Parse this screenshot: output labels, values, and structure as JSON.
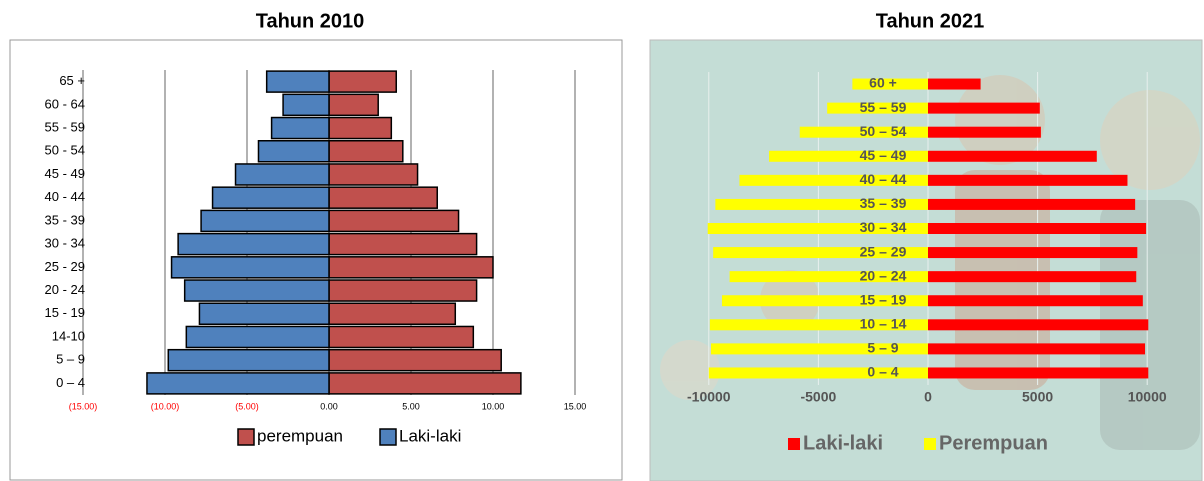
{
  "chart_data": [
    {
      "type": "bar",
      "orientation": "horizontal",
      "title": "Tahun 2010",
      "categories": [
        "0 – 4",
        "5 – 9",
        "14-10",
        "15 - 19",
        "20 - 24",
        "25 - 29",
        "30 - 34",
        "35 - 39",
        "40 - 44",
        "45 - 49",
        "50 - 54",
        "55 - 59",
        "60 - 64",
        "65 +"
      ],
      "series": [
        {
          "name": "perempuan",
          "color": "#c0504d",
          "values": [
            11.7,
            10.5,
            8.8,
            7.7,
            9.0,
            10.0,
            9.0,
            7.9,
            6.6,
            5.4,
            4.5,
            3.8,
            3.0,
            4.1
          ]
        },
        {
          "name": "Laki-laki",
          "color": "#4f81bd",
          "values": [
            -11.1,
            -9.8,
            -8.7,
            -7.9,
            -8.8,
            -9.6,
            -9.2,
            -7.8,
            -7.1,
            -5.7,
            -4.3,
            -3.5,
            -2.8,
            -3.8
          ]
        }
      ],
      "xlim": [
        -15,
        15
      ],
      "xticks": [
        {
          "value": -15,
          "label": "(15.00)"
        },
        {
          "value": -10,
          "label": "(10.00)"
        },
        {
          "value": -5,
          "label": "(5.00)"
        },
        {
          "value": 0,
          "label": "0.00"
        },
        {
          "value": 5,
          "label": "5.00"
        },
        {
          "value": 10,
          "label": "10.00"
        },
        {
          "value": 15,
          "label": "15.00"
        }
      ],
      "grid": true,
      "legend": "bottom"
    },
    {
      "type": "bar",
      "orientation": "horizontal",
      "title": "Tahun 2021",
      "categories": [
        "0 – 4",
        "5 – 9",
        "10 – 14",
        "15 – 19",
        "20 – 24",
        "25 – 29",
        "30 – 34",
        "35 – 39",
        "40 – 44",
        "45 – 49",
        "50 – 54",
        "55 – 59",
        "60 +"
      ],
      "series": [
        {
          "name": "Laki-laki",
          "color": "#ff0000",
          "values": [
            10050,
            9900,
            10050,
            9800,
            9500,
            9550,
            9950,
            9450,
            9100,
            7700,
            5150,
            5100,
            2400
          ]
        },
        {
          "name": "Perempuan",
          "color": "#ffff00",
          "values": [
            -10000,
            -9900,
            -9950,
            -9400,
            -9050,
            -9800,
            -10050,
            -9700,
            -8600,
            -7250,
            -5850,
            -4600,
            -3450
          ]
        }
      ],
      "xlim": [
        -12500,
        12500
      ],
      "xticks": [
        -10000,
        -5000,
        0,
        5000,
        10000
      ],
      "grid": true,
      "legend": "bottom"
    }
  ]
}
